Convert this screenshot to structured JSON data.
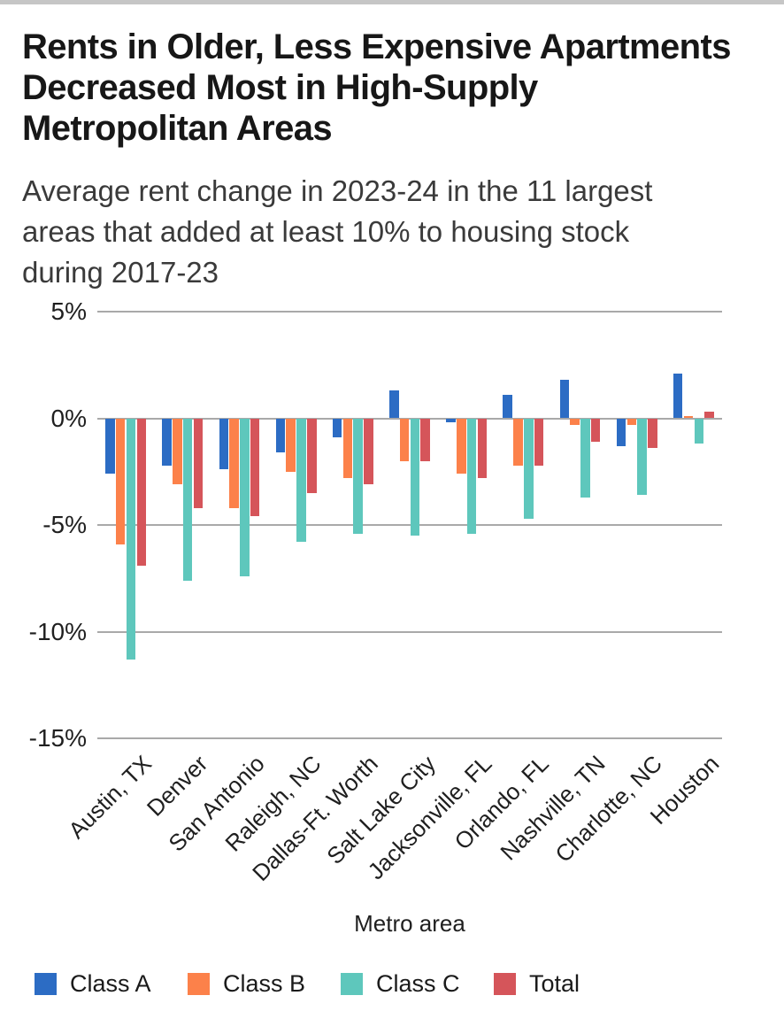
{
  "title_lines": [
    "Rents in Older, Less Expensive Apartments",
    "Decreased Most in High-Supply",
    "Metropolitan Areas"
  ],
  "subtitle_lines": [
    "Average rent change in 2023-24 in the 11 largest",
    "areas that added at least 10% to housing stock",
    "during 2017-23"
  ],
  "colors": {
    "class_a": "#2c6cc4",
    "class_b": "#fc814a",
    "class_c": "#5ec7bc",
    "total": "#d5555a",
    "gridline": "#a9a9a9",
    "top_bar": "#c6c6c6"
  },
  "chart_data": {
    "type": "bar",
    "title": "Rents in Older, Less Expensive Apartments Decreased Most in High-Supply Metropolitan Areas",
    "subtitle": "Average rent change in 2023-24 in the 11 largest areas that added at least 10% to housing stock during 2017-23",
    "xlabel": "Metro area",
    "ylabel": "",
    "ylim": [
      -15,
      5
    ],
    "grid": true,
    "legend_position": "bottom",
    "yticks": [
      5,
      0,
      -5,
      -10,
      -15
    ],
    "ytick_labels": [
      "5%",
      "0%",
      "-5%",
      "-10%",
      "-15%"
    ],
    "categories": [
      "Austin, TX",
      "Denver",
      "San Antonio",
      "Raleigh, NC",
      "Dallas-Ft. Worth",
      "Salt Lake City",
      "Jacksonville, FL",
      "Orlando, FL",
      "Nashville, TN",
      "Charlotte, NC",
      "Houston"
    ],
    "series": [
      {
        "name": "Class A",
        "color": "#2c6cc4",
        "values": [
          -2.6,
          -2.2,
          -2.4,
          -1.6,
          -0.9,
          1.3,
          -0.2,
          1.1,
          1.8,
          -1.3,
          2.1
        ]
      },
      {
        "name": "Class B",
        "color": "#fc814a",
        "values": [
          -5.9,
          -3.1,
          -4.2,
          -2.5,
          -2.8,
          -2.0,
          -2.6,
          -2.2,
          -0.3,
          -0.3,
          0.1
        ]
      },
      {
        "name": "Class C",
        "color": "#5ec7bc",
        "values": [
          -11.3,
          -7.6,
          -7.4,
          -5.8,
          -5.4,
          -5.5,
          -5.4,
          -4.7,
          -3.7,
          -3.6,
          -1.2
        ]
      },
      {
        "name": "Total",
        "color": "#d5555a",
        "values": [
          -6.9,
          -4.2,
          -4.6,
          -3.5,
          -3.1,
          -2.0,
          -2.8,
          -2.2,
          -1.1,
          -1.4,
          0.3
        ]
      }
    ]
  }
}
